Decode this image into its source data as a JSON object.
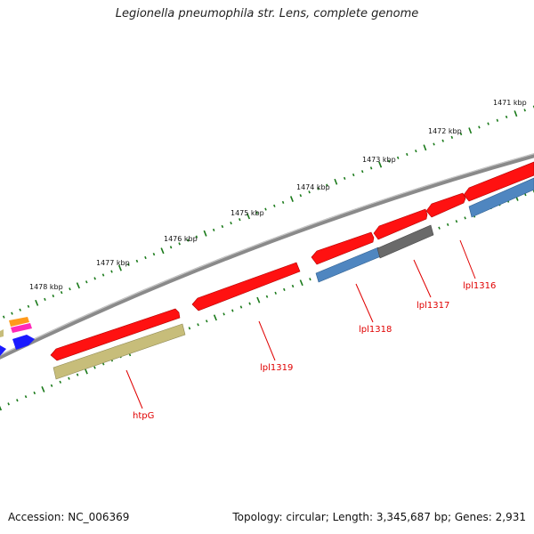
{
  "title": "Legionella pneumophila str. Lens, complete genome",
  "footer": {
    "accession": "Accession: NC_006369",
    "topology": "Topology: circular; Length: 3,345,687 bp; Genes: 2,931"
  },
  "colors": {
    "backbone": "#8a8a8a",
    "gc_ticks": "#1a7a1a",
    "gene_red": "#ff1111",
    "gene_blue": "#4f86c0",
    "gene_olive": "#c7bd7a",
    "gene_gray": "#6a6a6a",
    "label_red": "#e00000"
  },
  "kbp_scale": [
    "1471 kbp",
    "1472 kbp",
    "1473 kbp",
    "1474 kbp",
    "1475 kbp",
    "1476 kbp",
    "1477 kbp",
    "1478 kbp"
  ],
  "gene_labels": [
    "lpl1316",
    "lpl1317",
    "lpl1318",
    "lpl1319",
    "htpG"
  ]
}
